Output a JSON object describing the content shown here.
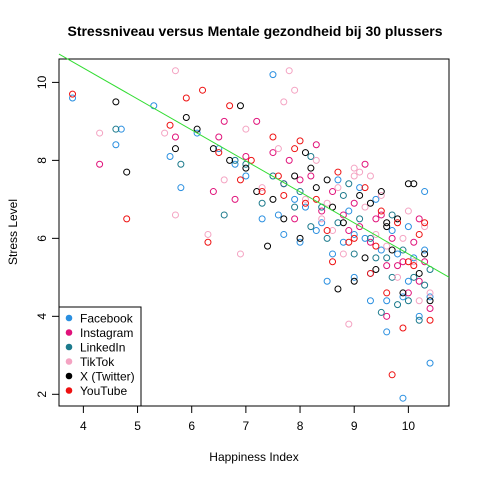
{
  "chart_data": {
    "type": "scatter",
    "title": "Stressniveau versus Mentale gezondheid bij 30 plussers",
    "xlabel": "Happiness Index",
    "ylabel": "Stress Level",
    "xlim": [
      3.55,
      10.75
    ],
    "ylim": [
      1.7,
      10.6
    ],
    "xticks": [
      4,
      5,
      6,
      7,
      8,
      9,
      10
    ],
    "yticks": [
      2,
      4,
      6,
      8,
      10
    ],
    "grid": false,
    "legend_position": "bottom-left",
    "trendline": {
      "color": "#33dd33",
      "intercept": 13.55,
      "slope": -0.795
    },
    "series": [
      {
        "name": "Facebook",
        "color": "#2a8fe0",
        "points": [
          [
            3.8,
            9.6
          ],
          [
            4.6,
            8.4
          ],
          [
            4.7,
            8.8
          ],
          [
            5.3,
            9.4
          ],
          [
            5.6,
            8.1
          ],
          [
            5.8,
            7.3
          ],
          [
            6.1,
            8.7
          ],
          [
            6.5,
            8.3
          ],
          [
            6.8,
            7.9
          ],
          [
            7.0,
            7.6
          ],
          [
            7.3,
            6.5
          ],
          [
            7.5,
            10.2
          ],
          [
            7.6,
            6.6
          ],
          [
            7.7,
            6.1
          ],
          [
            7.9,
            7.0
          ],
          [
            8.0,
            5.9
          ],
          [
            8.1,
            6.8
          ],
          [
            8.3,
            6.2
          ],
          [
            8.4,
            6.4
          ],
          [
            8.6,
            5.6
          ],
          [
            8.7,
            7.5
          ],
          [
            8.8,
            5.9
          ],
          [
            8.9,
            6.7
          ],
          [
            9.0,
            6.1
          ],
          [
            9.1,
            7.3
          ],
          [
            9.2,
            6.0
          ],
          [
            9.3,
            5.1
          ],
          [
            9.4,
            7.0
          ],
          [
            9.5,
            5.7
          ],
          [
            9.6,
            3.6
          ],
          [
            9.6,
            4.4
          ],
          [
            9.7,
            6.2
          ],
          [
            9.8,
            5.6
          ],
          [
            9.9,
            4.5
          ],
          [
            9.9,
            1.9
          ],
          [
            10.0,
            4.9
          ],
          [
            10.1,
            5.5
          ],
          [
            10.2,
            4.0
          ],
          [
            10.3,
            5.7
          ],
          [
            10.3,
            7.2
          ],
          [
            10.4,
            2.8
          ],
          [
            10.4,
            4.5
          ],
          [
            9.3,
            4.4
          ],
          [
            8.5,
            4.9
          ],
          [
            9.0,
            5.0
          ],
          [
            10.0,
            6.3
          ]
        ]
      },
      {
        "name": "Instagram",
        "color": "#e0127a",
        "points": [
          [
            4.3,
            7.9
          ],
          [
            5.7,
            8.6
          ],
          [
            6.4,
            7.2
          ],
          [
            6.5,
            8.6
          ],
          [
            6.6,
            9.0
          ],
          [
            6.8,
            7.0
          ],
          [
            7.0,
            8.1
          ],
          [
            7.2,
            9.0
          ],
          [
            7.5,
            8.2
          ],
          [
            7.7,
            7.4
          ],
          [
            7.8,
            8.0
          ],
          [
            7.9,
            6.5
          ],
          [
            8.0,
            7.5
          ],
          [
            8.2,
            7.6
          ],
          [
            8.4,
            6.7
          ],
          [
            8.6,
            7.2
          ],
          [
            8.8,
            6.6
          ],
          [
            8.9,
            6.2
          ],
          [
            9.0,
            6.9
          ],
          [
            9.2,
            7.9
          ],
          [
            9.3,
            5.9
          ],
          [
            9.4,
            6.5
          ],
          [
            9.5,
            6.6
          ],
          [
            9.6,
            5.3
          ],
          [
            9.7,
            6.0
          ],
          [
            9.8,
            5.3
          ],
          [
            9.9,
            5.4
          ],
          [
            10.0,
            4.6
          ],
          [
            10.1,
            5.9
          ],
          [
            10.2,
            4.9
          ],
          [
            10.3,
            5.4
          ],
          [
            10.4,
            4.2
          ],
          [
            10.2,
            6.5
          ],
          [
            8.3,
            8.4
          ],
          [
            9.1,
            6.3
          ],
          [
            9.6,
            4.0
          ]
        ]
      },
      {
        "name": "LinkedIn",
        "color": "#1c7a8c",
        "points": [
          [
            4.6,
            8.8
          ],
          [
            5.8,
            7.9
          ],
          [
            6.6,
            6.6
          ],
          [
            6.8,
            8.0
          ],
          [
            7.0,
            7.9
          ],
          [
            7.3,
            6.9
          ],
          [
            7.5,
            7.6
          ],
          [
            7.7,
            7.4
          ],
          [
            7.9,
            6.8
          ],
          [
            8.0,
            7.2
          ],
          [
            8.2,
            6.3
          ],
          [
            8.4,
            6.8
          ],
          [
            8.5,
            6.0
          ],
          [
            8.7,
            6.4
          ],
          [
            8.8,
            7.1
          ],
          [
            9.0,
            5.6
          ],
          [
            9.1,
            6.5
          ],
          [
            9.3,
            6.0
          ],
          [
            9.4,
            5.5
          ],
          [
            9.5,
            4.1
          ],
          [
            9.6,
            5.5
          ],
          [
            9.7,
            5.0
          ],
          [
            9.8,
            4.3
          ],
          [
            9.9,
            5.7
          ],
          [
            10.0,
            4.4
          ],
          [
            10.1,
            5.0
          ],
          [
            10.2,
            3.9
          ],
          [
            10.3,
            4.8
          ],
          [
            10.4,
            5.2
          ],
          [
            8.2,
            8.1
          ],
          [
            8.9,
            7.4
          ],
          [
            9.7,
            6.6
          ]
        ]
      },
      {
        "name": "TikTok",
        "color": "#f4a3c2",
        "points": [
          [
            4.3,
            8.7
          ],
          [
            5.5,
            8.7
          ],
          [
            5.7,
            6.6
          ],
          [
            5.7,
            10.3
          ],
          [
            6.3,
            6.1
          ],
          [
            6.6,
            7.5
          ],
          [
            6.9,
            5.6
          ],
          [
            7.0,
            8.8
          ],
          [
            7.3,
            7.3
          ],
          [
            7.6,
            8.3
          ],
          [
            7.7,
            9.5
          ],
          [
            7.8,
            10.3
          ],
          [
            7.9,
            9.8
          ],
          [
            8.1,
            7.0
          ],
          [
            8.3,
            8.0
          ],
          [
            8.4,
            6.5
          ],
          [
            8.6,
            6.2
          ],
          [
            8.7,
            7.3
          ],
          [
            8.8,
            5.6
          ],
          [
            8.9,
            3.8
          ],
          [
            9.0,
            7.6
          ],
          [
            9.1,
            7.7
          ],
          [
            9.2,
            6.8
          ],
          [
            9.3,
            7.6
          ],
          [
            9.4,
            6.1
          ],
          [
            9.5,
            7.1
          ],
          [
            9.6,
            5.8
          ],
          [
            9.8,
            5.0
          ],
          [
            9.9,
            6.0
          ],
          [
            10.0,
            6.7
          ],
          [
            10.1,
            5.4
          ],
          [
            10.2,
            4.4
          ],
          [
            10.3,
            6.3
          ],
          [
            10.4,
            4.6
          ],
          [
            9.0,
            7.8
          ],
          [
            8.5,
            6.9
          ]
        ]
      },
      {
        "name": "X (Twitter)",
        "color": "#000000",
        "points": [
          [
            4.6,
            9.5
          ],
          [
            4.8,
            7.7
          ],
          [
            5.7,
            8.3
          ],
          [
            5.9,
            9.1
          ],
          [
            6.1,
            8.8
          ],
          [
            6.4,
            8.3
          ],
          [
            6.7,
            8.0
          ],
          [
            6.9,
            9.4
          ],
          [
            7.0,
            7.8
          ],
          [
            7.2,
            7.2
          ],
          [
            7.4,
            5.8
          ],
          [
            7.5,
            7.0
          ],
          [
            7.7,
            6.5
          ],
          [
            7.9,
            7.6
          ],
          [
            8.1,
            8.2
          ],
          [
            8.2,
            7.8
          ],
          [
            8.3,
            7.3
          ],
          [
            8.5,
            7.5
          ],
          [
            8.6,
            6.8
          ],
          [
            8.7,
            4.7
          ],
          [
            8.8,
            6.4
          ],
          [
            9.0,
            4.9
          ],
          [
            9.1,
            7.1
          ],
          [
            9.2,
            5.5
          ],
          [
            9.3,
            6.9
          ],
          [
            9.4,
            5.2
          ],
          [
            9.5,
            7.2
          ],
          [
            9.6,
            6.4
          ],
          [
            9.7,
            5.7
          ],
          [
            9.8,
            6.5
          ],
          [
            9.9,
            4.6
          ],
          [
            10.0,
            7.4
          ],
          [
            10.1,
            7.4
          ],
          [
            10.2,
            5.1
          ],
          [
            10.3,
            5.6
          ],
          [
            10.4,
            4.4
          ],
          [
            9.6,
            6.3
          ],
          [
            8.0,
            6.0
          ]
        ]
      },
      {
        "name": "YouTube",
        "color": "#ee1111",
        "points": [
          [
            3.8,
            9.7
          ],
          [
            4.8,
            6.5
          ],
          [
            5.6,
            8.9
          ],
          [
            5.9,
            9.6
          ],
          [
            6.2,
            9.8
          ],
          [
            6.3,
            5.9
          ],
          [
            6.5,
            8.2
          ],
          [
            6.7,
            9.4
          ],
          [
            6.9,
            7.5
          ],
          [
            7.1,
            8.0
          ],
          [
            7.3,
            7.2
          ],
          [
            7.5,
            8.6
          ],
          [
            7.6,
            7.6
          ],
          [
            7.7,
            7.1
          ],
          [
            7.9,
            8.3
          ],
          [
            8.0,
            8.5
          ],
          [
            8.1,
            6.9
          ],
          [
            8.3,
            7.0
          ],
          [
            8.5,
            6.2
          ],
          [
            8.7,
            7.7
          ],
          [
            8.9,
            5.9
          ],
          [
            9.0,
            6.0
          ],
          [
            9.2,
            7.3
          ],
          [
            9.3,
            5.1
          ],
          [
            9.5,
            6.7
          ],
          [
            9.6,
            4.6
          ],
          [
            9.7,
            2.5
          ],
          [
            9.8,
            6.4
          ],
          [
            9.9,
            3.7
          ],
          [
            10.0,
            5.4
          ],
          [
            10.1,
            5.3
          ],
          [
            10.2,
            6.1
          ],
          [
            10.3,
            6.4
          ],
          [
            10.4,
            3.9
          ],
          [
            9.4,
            5.8
          ],
          [
            8.6,
            5.4
          ]
        ]
      }
    ]
  }
}
